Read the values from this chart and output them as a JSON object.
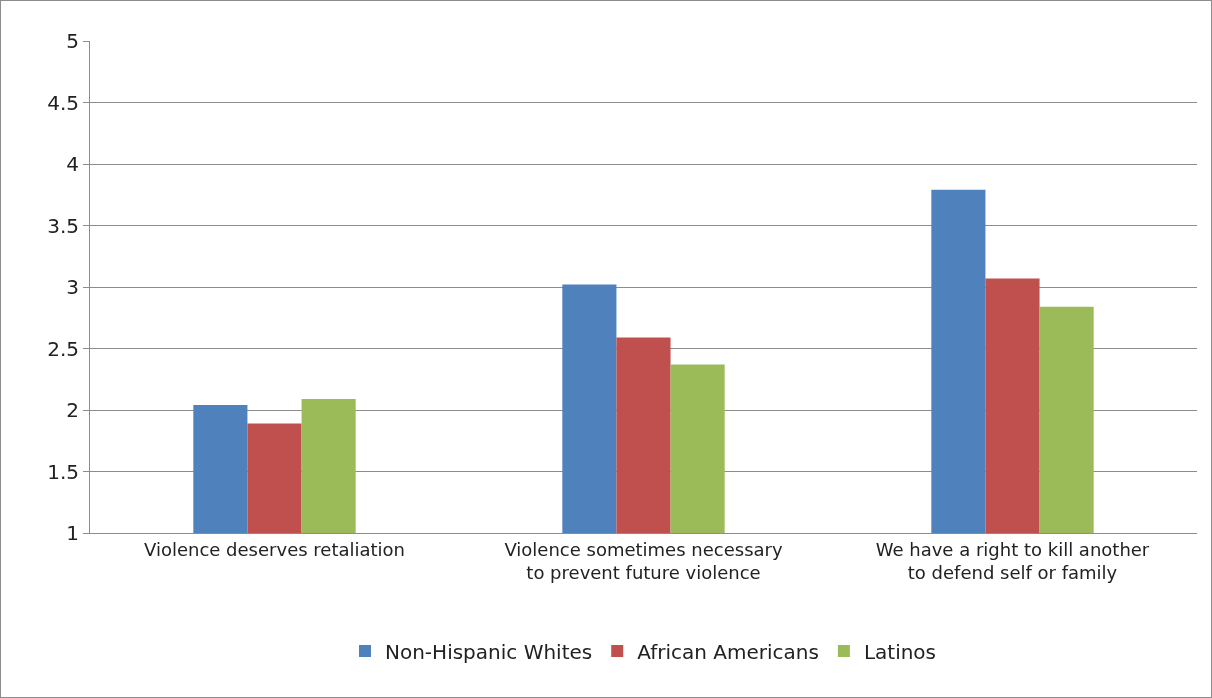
{
  "chart_data": {
    "type": "bar",
    "categories": [
      "Violence deserves retaliation",
      "Violence sometimes necessary to prevent future violence",
      "We have a right to kill another to defend self or family"
    ],
    "series": [
      {
        "name": "Non-Hispanic Whites",
        "color": "#4f81bd",
        "values": [
          2.04,
          3.02,
          3.79
        ]
      },
      {
        "name": "African Americans",
        "color": "#c0504d",
        "values": [
          1.89,
          2.59,
          3.07
        ]
      },
      {
        "name": "Latinos",
        "color": "#9bbb59",
        "values": [
          2.09,
          2.37,
          2.84
        ]
      }
    ],
    "ylim": [
      1,
      5
    ],
    "yticks": [
      1,
      1.5,
      2,
      2.5,
      3,
      3.5,
      4,
      4.5,
      5
    ],
    "grid": "y",
    "legend": "bottom"
  }
}
